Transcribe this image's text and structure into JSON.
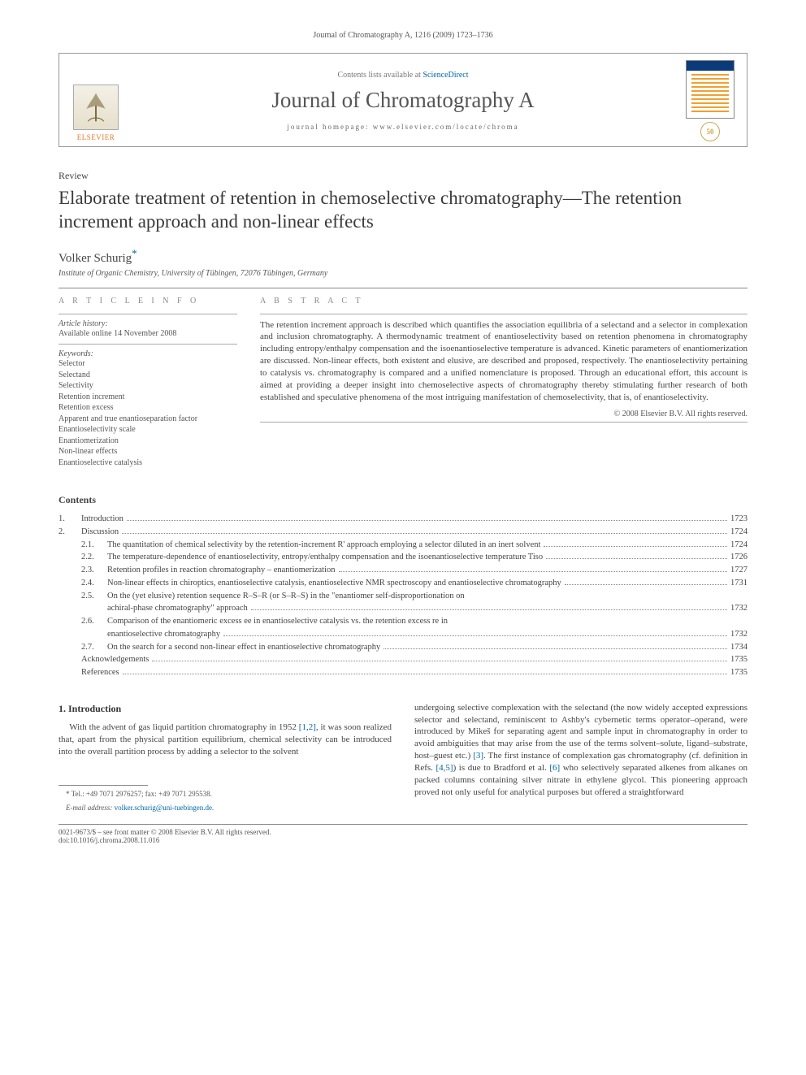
{
  "running_header": "Journal of Chromatography A, 1216 (2009) 1723–1736",
  "masthead": {
    "publisher_label": "ELSEVIER",
    "contents_available": "Contents lists available at",
    "sciencedirect": "ScienceDirect",
    "journal_name": "Journal of Chromatography A",
    "homepage_label": "journal homepage:",
    "homepage_url": "www.elsevier.com/locate/chroma",
    "anniversary_badge": "50"
  },
  "article_type": "Review",
  "title": "Elaborate treatment of retention in chemoselective chromatography—The retention increment approach and non-linear effects",
  "author": "Volker Schurig",
  "corresponding_marker": "*",
  "affiliation": "Institute of Organic Chemistry, University of Tübingen, 72076 Tübingen, Germany",
  "article_info_label": "A R T I C L E   I N F O",
  "abstract_label": "A B S T R A C T",
  "history_head": "Article history:",
  "history_line": "Available online 14 November 2008",
  "keywords_head": "Keywords:",
  "keywords": [
    "Selector",
    "Selectand",
    "Selectivity",
    "Retention increment",
    "Retention excess",
    "Apparent and true enantioseparation factor",
    "Enantioselectivity scale",
    "Enantiomerization",
    "Non-linear effects",
    "Enantioselective catalysis"
  ],
  "abstract_text": "The retention increment approach is described which quantifies the association equilibria of a selectand and a selector in complexation and inclusion chromatography. A thermodynamic treatment of enantioselectivity based on retention phenomena in chromatography including entropy/enthalpy compensation and the isoenantioselective temperature is advanced. Kinetic parameters of enantiomerization are discussed. Non-linear effects, both existent and elusive, are described and proposed, respectively. The enantioselectivity pertaining to catalysis vs. chromatography is compared and a unified nomenclature is proposed. Through an educational effort, this account is aimed at providing a deeper insight into chemoselective aspects of chromatography thereby stimulating further research of both established and speculative phenomena of the most intriguing manifestation of chemoselectivity, that is, of enantioselectivity.",
  "copyright_line": "© 2008 Elsevier B.V. All rights reserved.",
  "contents_heading": "Contents",
  "toc": [
    {
      "lvl": 1,
      "num": "1.",
      "title": "Introduction",
      "page": "1723"
    },
    {
      "lvl": 1,
      "num": "2.",
      "title": "Discussion",
      "page": "1724"
    },
    {
      "lvl": 2,
      "num": "2.1.",
      "title": "The quantitation of chemical selectivity by the retention-increment R' approach employing a selector diluted in an inert solvent",
      "page": "1724"
    },
    {
      "lvl": 2,
      "num": "2.2.",
      "title": "The temperature-dependence of enantioselectivity, entropy/enthalpy compensation and the isoenantioselective temperature Tiso",
      "page": "1726"
    },
    {
      "lvl": 2,
      "num": "2.3.",
      "title": "Retention profiles in reaction chromatography – enantiomerization",
      "page": "1727"
    },
    {
      "lvl": 2,
      "num": "2.4.",
      "title": "Non-linear effects in chiroptics, enantioselective catalysis, enantioselective NMR spectroscopy and enantioselective chromatography",
      "page": "1731"
    },
    {
      "lvl": 2,
      "num": "2.5.",
      "title": "On the (yet elusive) retention sequence R–S–R (or S–R–S) in the \"enantiomer self-disproportionation on achiral-phase chromatography\" approach",
      "page": "1732",
      "wrap": true
    },
    {
      "lvl": 2,
      "num": "2.6.",
      "title": "Comparison of the enantiomeric excess ee in enantioselective catalysis vs. the retention excess re in enantioselective chromatography",
      "page": "1732",
      "wrap": true
    },
    {
      "lvl": 2,
      "num": "2.7.",
      "title": "On the search for a second non-linear effect in enantioselective chromatography",
      "page": "1734"
    },
    {
      "lvl": 1,
      "num": "",
      "title": "Acknowledgements",
      "page": "1735"
    },
    {
      "lvl": 1,
      "num": "",
      "title": "References",
      "page": "1735"
    }
  ],
  "intro_heading": "1. Introduction",
  "intro_left": "With the advent of gas liquid partition chromatography in 1952 [1,2], it was soon realized that, apart from the physical partition equilibrium, chemical selectivity can be introduced into the overall partition process by adding a selector to the solvent",
  "intro_right": "undergoing selective complexation with the selectand (the now widely accepted expressions selector and selectand, reminiscent to Ashby's cybernetic terms operator–operand, were introduced by Mikeš for separating agent and sample input in chromatography in order to avoid ambiguities that may arise from the use of the terms solvent–solute, ligand–substrate, host–guest etc.) [3]. The first instance of complexation gas chromatography (cf. definition in Refs. [4,5]) is due to Bradford et al. [6] who selectively separated alkenes from alkanes on packed columns containing silver nitrate in ethylene glycol. This pioneering approach proved not only useful for analytical purposes but offered a straightforward",
  "footnote_tel": "* Tel.: +49 7071 2976257; fax: +49 7071 295538.",
  "footnote_email_label": "E-mail address:",
  "footnote_email": "volker.schurig@uni-tuebingen.de.",
  "footer_left": "0021-9673/$ – see front matter © 2008 Elsevier B.V. All rights reserved.",
  "footer_doi": "doi:10.1016/j.chroma.2008.11.016",
  "colors": {
    "link": "#0066a6",
    "publisher": "#e97826",
    "text": "#3a3a3a",
    "rule": "#888888"
  }
}
